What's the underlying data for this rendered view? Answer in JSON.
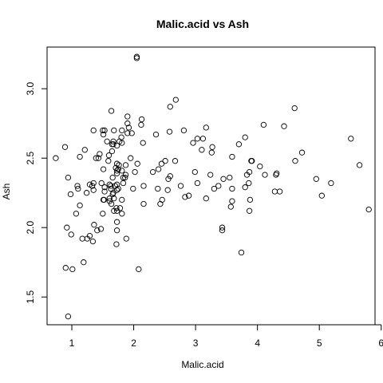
{
  "chart_data": {
    "type": "scatter",
    "title": "Malic.acid vs Ash",
    "xlabel": "Malic.acid",
    "ylabel": "Ash",
    "xlim": [
      0.6,
      5.9
    ],
    "ylim": [
      1.3,
      3.3
    ],
    "x_ticks": [
      "1",
      "2",
      "3",
      "4",
      "5",
      "6"
    ],
    "y_ticks": [
      "1.5",
      "2.0",
      "2.5",
      "3.0"
    ],
    "grid": false,
    "legend": false,
    "marker": "open-circle",
    "points": [
      [
        1.71,
        2.43
      ],
      [
        1.78,
        2.14
      ],
      [
        2.36,
        2.67
      ],
      [
        1.95,
        2.5
      ],
      [
        2.59,
        2.87
      ],
      [
        1.76,
        2.45
      ],
      [
        1.87,
        2.45
      ],
      [
        2.15,
        2.61
      ],
      [
        1.64,
        2.17
      ],
      [
        1.35,
        2.27
      ],
      [
        2.16,
        2.3
      ],
      [
        1.48,
        2.32
      ],
      [
        1.73,
        2.41
      ],
      [
        1.73,
        2.39
      ],
      [
        1.87,
        2.38
      ],
      [
        1.81,
        2.7
      ],
      [
        1.92,
        2.72
      ],
      [
        1.57,
        2.62
      ],
      [
        1.59,
        2.48
      ],
      [
        3.1,
        2.56
      ],
      [
        1.63,
        2.28
      ],
      [
        3.8,
        2.65
      ],
      [
        1.86,
        2.36
      ],
      [
        1.6,
        2.52
      ],
      [
        1.81,
        2.61
      ],
      [
        2.05,
        3.22
      ],
      [
        1.77,
        2.62
      ],
      [
        1.72,
        2.14
      ],
      [
        1.9,
        2.8
      ],
      [
        1.68,
        2.21
      ],
      [
        1.5,
        2.7
      ],
      [
        1.66,
        2.36
      ],
      [
        1.83,
        2.36
      ],
      [
        1.53,
        2.7
      ],
      [
        1.8,
        2.65
      ],
      [
        1.81,
        2.41
      ],
      [
        1.64,
        2.84
      ],
      [
        1.65,
        2.55
      ],
      [
        1.5,
        2.1
      ],
      [
        3.59,
        2.51
      ],
      [
        1.73,
        2.31
      ],
      [
        3.87,
        2.12
      ],
      [
        1.73,
        2.59
      ],
      [
        3.8,
        2.29
      ],
      [
        1.81,
        2.1
      ],
      [
        4.04,
        2.44
      ],
      [
        3.59,
        2.28
      ],
      [
        1.68,
        2.12
      ],
      [
        2.02,
        2.4
      ],
      [
        1.73,
        2.27
      ],
      [
        1.73,
        2.04
      ],
      [
        1.65,
        2.6
      ],
      [
        1.75,
        2.42
      ],
      [
        1.9,
        2.68
      ],
      [
        1.67,
        2.25
      ],
      [
        1.73,
        2.46
      ],
      [
        1.7,
        2.3
      ],
      [
        1.97,
        2.68
      ],
      [
        1.43,
        2.5
      ],
      [
        0.94,
        1.36
      ],
      [
        1.1,
        2.28
      ],
      [
        1.36,
        2.02
      ],
      [
        1.25,
        1.92
      ],
      [
        1.13,
        2.16
      ],
      [
        1.45,
        2.53
      ],
      [
        1.21,
        2.56
      ],
      [
        1.01,
        1.7
      ],
      [
        1.17,
        1.92
      ],
      [
        0.94,
        2.36
      ],
      [
        1.19,
        1.75
      ],
      [
        1.61,
        2.21
      ],
      [
        1.51,
        2.67
      ],
      [
        1.66,
        2.24
      ],
      [
        1.67,
        2.6
      ],
      [
        1.09,
        2.3
      ],
      [
        1.88,
        1.92
      ],
      [
        0.9,
        1.71
      ],
      [
        2.89,
        2.23
      ],
      [
        0.99,
        1.95
      ],
      [
        3.87,
        2.4
      ],
      [
        0.92,
        2.0
      ],
      [
        1.81,
        2.2
      ],
      [
        1.13,
        2.51
      ],
      [
        3.86,
        2.32
      ],
      [
        0.89,
        2.58
      ],
      [
        0.98,
        2.24
      ],
      [
        1.61,
        2.31
      ],
      [
        1.67,
        2.62
      ],
      [
        2.06,
        2.46
      ],
      [
        1.33,
        2.3
      ],
      [
        1.83,
        2.32
      ],
      [
        1.51,
        2.42
      ],
      [
        1.53,
        2.26
      ],
      [
        2.83,
        2.22
      ],
      [
        1.99,
        2.28
      ],
      [
        1.52,
        2.2
      ],
      [
        2.12,
        2.74
      ],
      [
        1.41,
        1.98
      ],
      [
        1.07,
        2.1
      ],
      [
        3.17,
        2.21
      ],
      [
        2.08,
        1.7
      ],
      [
        1.34,
        1.9
      ],
      [
        2.45,
        2.46
      ],
      [
        1.72,
        1.88
      ],
      [
        1.73,
        1.98
      ],
      [
        2.55,
        2.27
      ],
      [
        1.73,
        2.12
      ],
      [
        1.75,
        2.28
      ],
      [
        1.29,
        1.94
      ],
      [
        1.35,
        2.7
      ],
      [
        3.74,
        1.82
      ],
      [
        2.43,
        2.17
      ],
      [
        2.68,
        2.92
      ],
      [
        0.74,
        2.5
      ],
      [
        1.39,
        2.5
      ],
      [
        1.51,
        2.2
      ],
      [
        1.47,
        1.99
      ],
      [
        1.61,
        2.19
      ],
      [
        3.43,
        1.98
      ],
      [
        3.43,
        2.0
      ],
      [
        2.4,
        2.42
      ],
      [
        2.05,
        3.23
      ],
      [
        4.43,
        2.73
      ],
      [
        5.8,
        2.13
      ],
      [
        4.31,
        2.39
      ],
      [
        2.16,
        2.17
      ],
      [
        1.53,
        2.29
      ],
      [
        2.13,
        2.78
      ],
      [
        1.63,
        2.3
      ],
      [
        4.3,
        2.38
      ],
      [
        1.35,
        2.32
      ],
      [
        2.99,
        2.4
      ],
      [
        2.31,
        2.4
      ],
      [
        3.55,
        2.36
      ],
      [
        1.24,
        2.25
      ],
      [
        2.46,
        2.2
      ],
      [
        4.72,
        2.54
      ],
      [
        5.51,
        2.64
      ],
      [
        3.59,
        2.19
      ],
      [
        2.96,
        2.61
      ],
      [
        2.81,
        2.7
      ],
      [
        2.56,
        2.35
      ],
      [
        3.17,
        2.72
      ],
      [
        4.95,
        2.35
      ],
      [
        3.88,
        2.2
      ],
      [
        3.57,
        2.15
      ],
      [
        5.04,
        2.23
      ],
      [
        4.61,
        2.48
      ],
      [
        3.24,
        2.38
      ],
      [
        3.9,
        2.48
      ],
      [
        3.12,
        2.64
      ],
      [
        2.67,
        2.48
      ],
      [
        1.9,
        2.75
      ],
      [
        3.3,
        2.28
      ],
      [
        1.29,
        2.31
      ],
      [
        5.19,
        2.32
      ],
      [
        4.12,
        2.38
      ],
      [
        3.03,
        2.64
      ],
      [
        1.68,
        2.7
      ],
      [
        3.83,
        2.38
      ],
      [
        3.26,
        2.54
      ],
      [
        3.27,
        2.58
      ],
      [
        3.45,
        2.35
      ],
      [
        2.76,
        2.3
      ],
      [
        4.36,
        2.26
      ],
      [
        3.7,
        2.6
      ],
      [
        3.37,
        2.3
      ],
      [
        2.58,
        2.69
      ],
      [
        4.6,
        2.86
      ],
      [
        3.03,
        2.32
      ],
      [
        2.39,
        2.28
      ],
      [
        2.51,
        2.48
      ],
      [
        5.65,
        2.45
      ],
      [
        3.91,
        2.48
      ],
      [
        4.28,
        2.26
      ],
      [
        2.59,
        2.37
      ],
      [
        4.1,
        2.74
      ]
    ]
  }
}
